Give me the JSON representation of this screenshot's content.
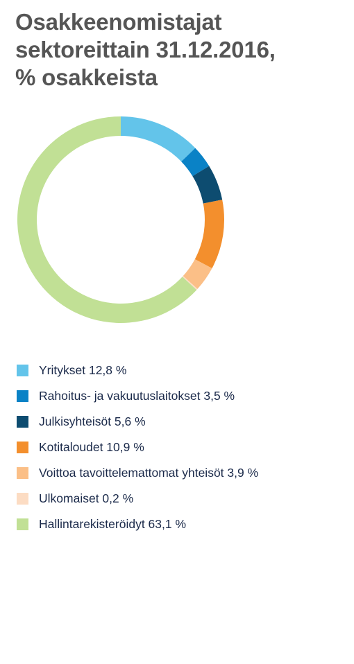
{
  "chart_data": {
    "type": "donut",
    "title_lines": [
      "Osakkeenomistajat",
      "sektoreittain 31.12.2016,",
      "% osakkeista"
    ],
    "series": [
      {
        "name": "Yritykset",
        "value": 12.8,
        "label": "Yritykset 12,8 %",
        "color": "#63c4ea"
      },
      {
        "name": "Rahoitus- ja vakuutuslaitokset",
        "value": 3.5,
        "label": "Rahoitus- ja vakuutuslaitokset 3,5 %",
        "color": "#0a82c6"
      },
      {
        "name": "Julkisyhteisöt",
        "value": 5.6,
        "label": "Julkisyhteisöt 5,6 %",
        "color": "#0d4c70"
      },
      {
        "name": "Kotitaloudet",
        "value": 10.9,
        "label": "Kotitaloudet 10,9 %",
        "color": "#f38f2d"
      },
      {
        "name": "Voittoa tavoittelemattomat yhteisöt",
        "value": 3.9,
        "label": "Voittoa tavoittelemattomat yhteisöt 3,9 %",
        "color": "#fbbf87"
      },
      {
        "name": "Ulkomaiset",
        "value": 0.2,
        "label": "Ulkomaiset 0,2 %",
        "color": "#fcdcc3"
      },
      {
        "name": "Hallintarekisteröidyt",
        "value": 63.1,
        "label": "Hallintarekisteröidyt 63,1 %",
        "color": "#c1e095"
      }
    ],
    "legend_position": "bottom"
  }
}
